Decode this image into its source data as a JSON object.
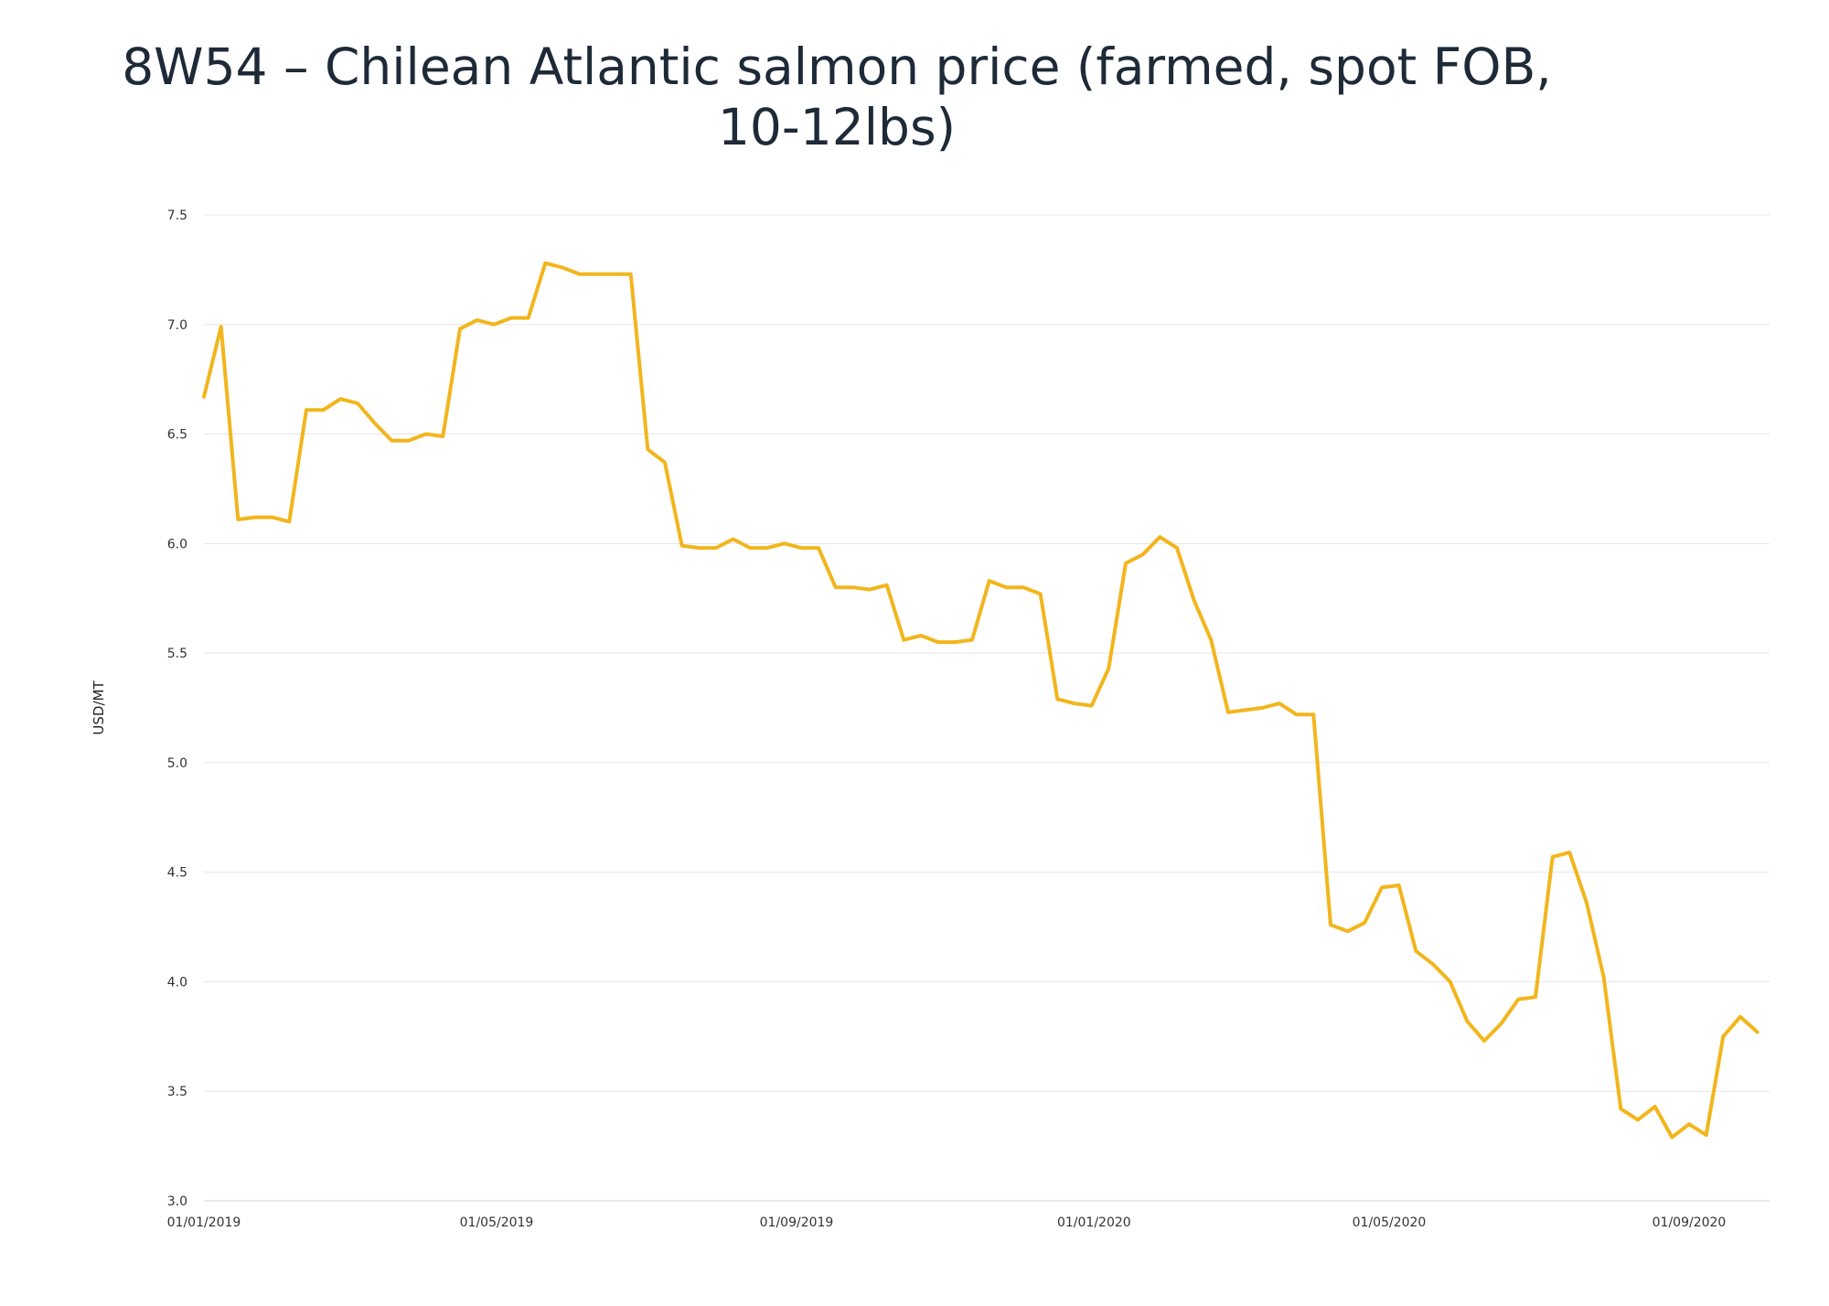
{
  "chart_data": {
    "type": "line",
    "title_lines": [
      "8W54 – Chilean Atlantic salmon price (farmed, spot FOB,",
      "10-12lbs)"
    ],
    "xlabel": "",
    "ylabel": "USD/MT",
    "ylim": [
      3.0,
      7.5
    ],
    "yticks": [
      "3.0",
      "3.5",
      "4.0",
      "4.5",
      "5.0",
      "5.5",
      "6.0",
      "6.5",
      "7.0",
      "7.5"
    ],
    "xticks": [
      {
        "label": "01/01/2019",
        "date": "2019-01-01"
      },
      {
        "label": "01/05/2019",
        "date": "2019-05-01"
      },
      {
        "label": "01/09/2019",
        "date": "2019-09-01"
      },
      {
        "label": "01/01/2020",
        "date": "2020-01-01"
      },
      {
        "label": "01/05/2020",
        "date": "2020-05-01"
      },
      {
        "label": "01/09/2020",
        "date": "2020-09-01"
      }
    ],
    "xlim": [
      "2019-01-01",
      "2020-10-04"
    ],
    "grid": true,
    "series_color": "#f2b51c",
    "series": [
      {
        "x": [
          "2019-01-01",
          "2019-01-08",
          "2019-01-15",
          "2019-01-22",
          "2019-01-29",
          "2019-02-05",
          "2019-02-12",
          "2019-02-19",
          "2019-02-26",
          "2019-03-05",
          "2019-03-12",
          "2019-03-19",
          "2019-03-26",
          "2019-04-02",
          "2019-04-09",
          "2019-04-16",
          "2019-04-23",
          "2019-04-30",
          "2019-05-07",
          "2019-05-14",
          "2019-05-21",
          "2019-05-28",
          "2019-06-04",
          "2019-06-11",
          "2019-06-18",
          "2019-06-25",
          "2019-07-02",
          "2019-07-09",
          "2019-07-16",
          "2019-07-23",
          "2019-07-30",
          "2019-08-06",
          "2019-08-13",
          "2019-08-20",
          "2019-08-27",
          "2019-09-03",
          "2019-09-10",
          "2019-09-17",
          "2019-09-24",
          "2019-10-01",
          "2019-10-08",
          "2019-10-15",
          "2019-10-22",
          "2019-10-29",
          "2019-11-05",
          "2019-11-12",
          "2019-11-19",
          "2019-11-26",
          "2019-12-03",
          "2019-12-10",
          "2019-12-17",
          "2019-12-24",
          "2019-12-31",
          "2020-01-07",
          "2020-01-14",
          "2020-01-21",
          "2020-01-28",
          "2020-02-04",
          "2020-02-11",
          "2020-02-18",
          "2020-02-25",
          "2020-03-03",
          "2020-03-10",
          "2020-03-17",
          "2020-03-24",
          "2020-03-31",
          "2020-04-07",
          "2020-04-14",
          "2020-04-21",
          "2020-04-28",
          "2020-05-05",
          "2020-05-12",
          "2020-05-19",
          "2020-05-26",
          "2020-06-02",
          "2020-06-09",
          "2020-06-16",
          "2020-06-23",
          "2020-06-30",
          "2020-07-07",
          "2020-07-14",
          "2020-07-21",
          "2020-07-28",
          "2020-08-04",
          "2020-08-11",
          "2020-08-18",
          "2020-08-25",
          "2020-09-01",
          "2020-09-08",
          "2020-09-15",
          "2020-09-22",
          "2020-09-29"
        ],
        "values": [
          6.67,
          6.99,
          6.11,
          6.12,
          6.12,
          6.1,
          6.61,
          6.61,
          6.66,
          6.64,
          6.55,
          6.47,
          6.47,
          6.5,
          6.49,
          6.98,
          7.02,
          7.0,
          7.03,
          7.03,
          7.28,
          7.26,
          7.23,
          7.23,
          7.23,
          7.23,
          6.43,
          6.37,
          5.99,
          5.98,
          5.98,
          6.02,
          5.98,
          5.98,
          6.0,
          5.98,
          5.98,
          5.8,
          5.8,
          5.79,
          5.81,
          5.56,
          5.58,
          5.55,
          5.55,
          5.56,
          5.83,
          5.8,
          5.8,
          5.77,
          5.29,
          5.27,
          5.26,
          5.43,
          5.91,
          5.95,
          6.03,
          5.98,
          5.74,
          5.56,
          5.23,
          5.24,
          5.25,
          5.27,
          5.22,
          5.22,
          4.26,
          4.23,
          4.27,
          4.43,
          4.44,
          4.14,
          4.08,
          4.0,
          3.82,
          3.73,
          3.81,
          3.92,
          3.93,
          4.57,
          4.59,
          4.36,
          4.02,
          3.42,
          3.37,
          3.43,
          3.29,
          3.35,
          3.3,
          3.75,
          3.84,
          3.77
        ]
      }
    ]
  }
}
